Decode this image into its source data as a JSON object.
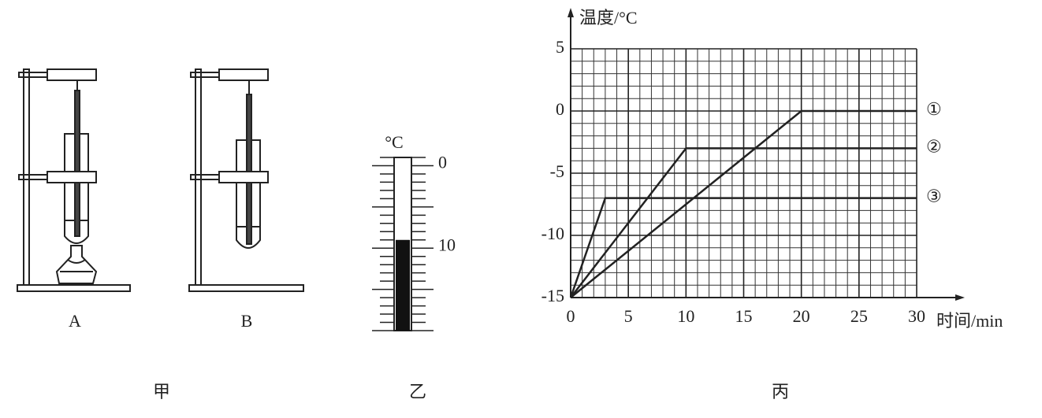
{
  "apparatus": {
    "caption": "甲",
    "labels": [
      "A",
      "B"
    ]
  },
  "thermometer": {
    "caption": "乙",
    "unit": "°C",
    "range": [
      1,
      -20
    ],
    "reading": -9,
    "ticks": [
      {
        "value": 0,
        "label": "0"
      },
      {
        "value": -10,
        "label": "10"
      }
    ]
  },
  "chart_data": {
    "type": "line",
    "caption": "丙",
    "x_label": "时间/min",
    "y_label": "温度/°C",
    "xlim": [
      0,
      30
    ],
    "ylim": [
      -15,
      5
    ],
    "xticks": [
      0,
      5,
      10,
      15,
      20,
      25,
      30
    ],
    "yticks": [
      -15,
      -10,
      -5,
      0,
      5
    ],
    "grid": true,
    "minor_grid_step": 1,
    "series": [
      {
        "name": "①",
        "color": "#222222",
        "x": [
          0,
          20,
          30
        ],
        "values": [
          -15,
          0,
          0
        ]
      },
      {
        "name": "②",
        "color": "#222222",
        "x": [
          0,
          10,
          30
        ],
        "values": [
          -15,
          -3,
          -3
        ]
      },
      {
        "name": "③",
        "color": "#222222",
        "x": [
          0,
          3,
          30
        ],
        "values": [
          -15,
          -7,
          -7
        ]
      }
    ]
  }
}
